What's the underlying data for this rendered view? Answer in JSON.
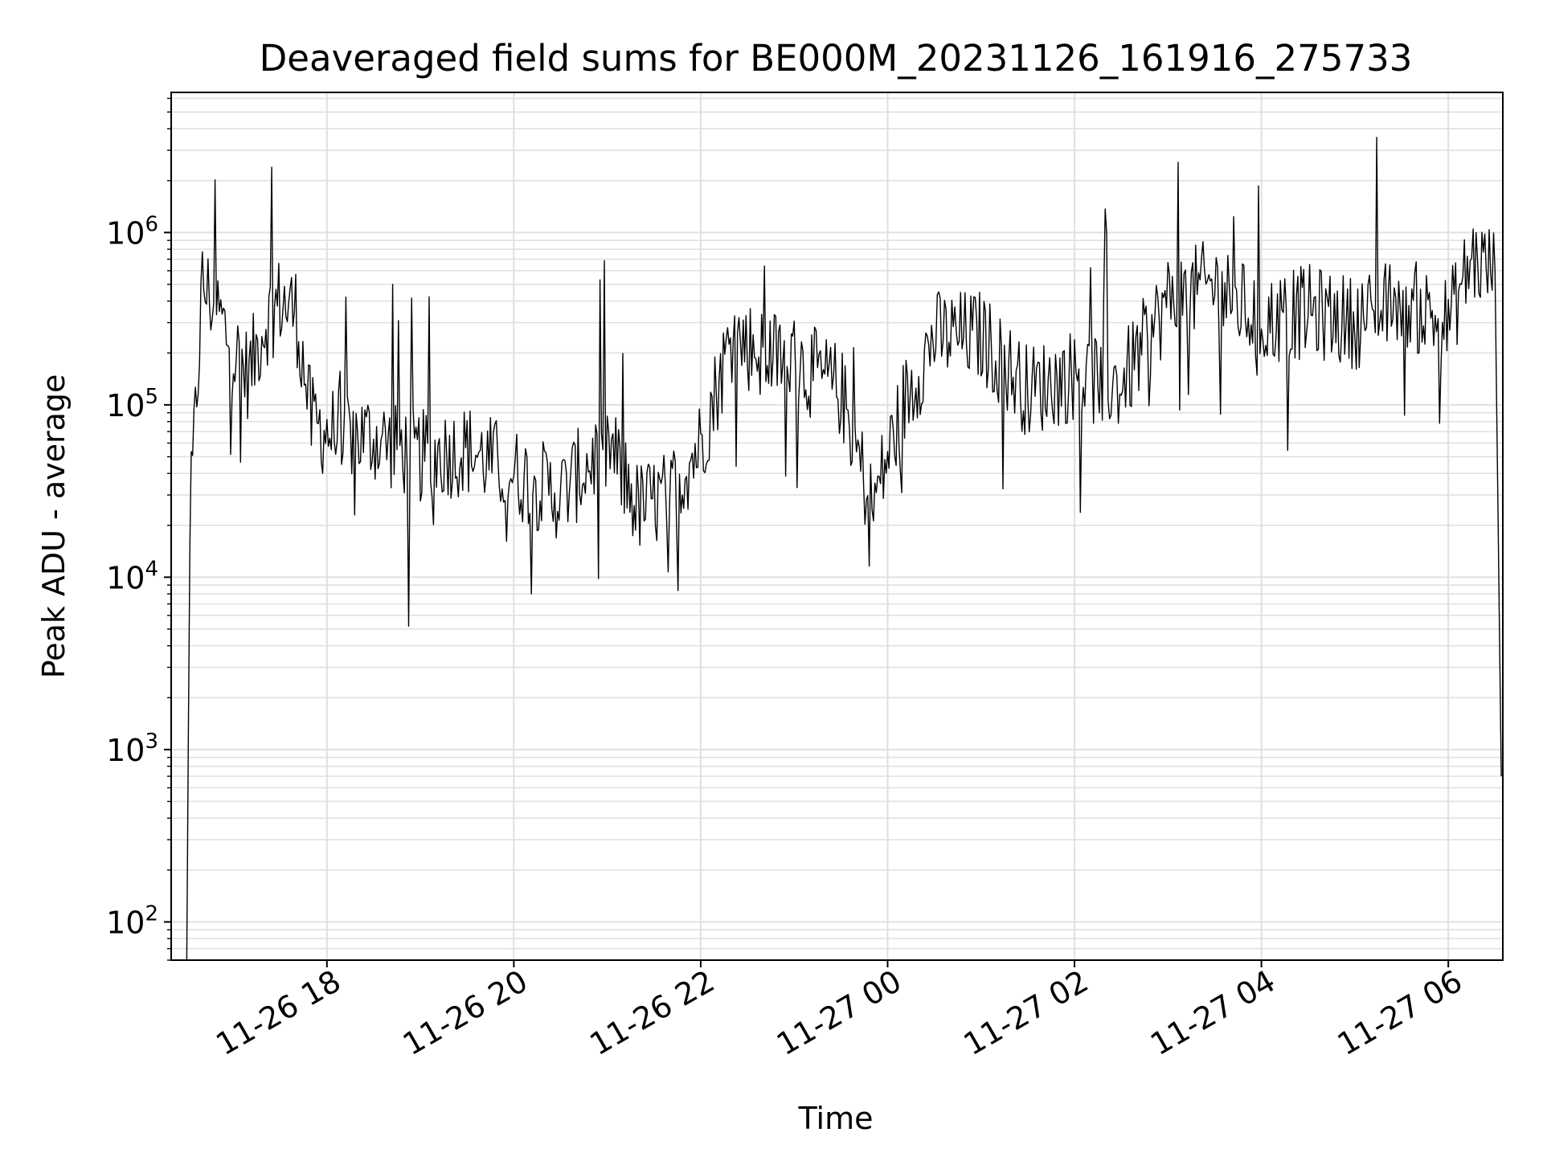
{
  "chart_data": {
    "type": "line",
    "title": "Deaveraged field sums for BE000M_20231126_161916_275733",
    "xlabel": "Time",
    "ylabel": "Peak ADU - average",
    "y_scale": "log",
    "ylim": [
      60,
      6500000
    ],
    "xlim": [
      "2023-11-26 16:20",
      "2023-11-27 06:35"
    ],
    "grid": true,
    "x_ticks": [
      {
        "value": "2023-11-26 18:00",
        "label": "11-26 18"
      },
      {
        "value": "2023-11-26 20:00",
        "label": "11-26 20"
      },
      {
        "value": "2023-11-26 22:00",
        "label": "11-26 22"
      },
      {
        "value": "2023-11-27 00:00",
        "label": "11-27 00"
      },
      {
        "value": "2023-11-27 02:00",
        "label": "11-27 02"
      },
      {
        "value": "2023-11-27 04:00",
        "label": "11-27 04"
      },
      {
        "value": "2023-11-27 06:00",
        "label": "11-27 06"
      }
    ],
    "y_ticks": [
      {
        "value": 100,
        "base": "10",
        "exp": "2"
      },
      {
        "value": 1000,
        "base": "10",
        "exp": "3"
      },
      {
        "value": 10000,
        "base": "10",
        "exp": "4"
      },
      {
        "value": 100000,
        "base": "10",
        "exp": "5"
      },
      {
        "value": 1000000,
        "base": "10",
        "exp": "6"
      }
    ],
    "colors": {
      "line": "#000000",
      "grid": "#e0e0e0"
    },
    "series": [
      {
        "points": [
          [
            "2023-11-26 16:30",
            60
          ],
          [
            "2023-11-26 16:32",
            20000
          ],
          [
            "2023-11-26 16:40",
            500000
          ],
          [
            "2023-11-26 16:50",
            350000
          ],
          [
            "2023-11-26 17:00",
            200000
          ],
          [
            "2023-11-26 17:10",
            150000
          ],
          [
            "2023-11-26 17:20",
            300000
          ],
          [
            "2023-11-26 17:30",
            400000
          ],
          [
            "2023-11-26 17:40",
            350000
          ],
          [
            "2023-11-26 17:50",
            80000
          ],
          [
            "2023-11-26 18:00",
            70000
          ],
          [
            "2023-11-26 18:30",
            65000
          ],
          [
            "2023-11-26 19:00",
            50000
          ],
          [
            "2023-11-26 19:30",
            55000
          ],
          [
            "2023-11-26 20:00",
            40000
          ],
          [
            "2023-11-26 20:30",
            30000
          ],
          [
            "2023-11-26 21:00",
            60000
          ],
          [
            "2023-11-26 21:20",
            25000
          ],
          [
            "2023-11-26 21:40",
            30000
          ],
          [
            "2023-11-26 22:00",
            60000
          ],
          [
            "2023-11-26 22:20",
            250000
          ],
          [
            "2023-11-26 22:40",
            200000
          ],
          [
            "2023-11-26 23:00",
            180000
          ],
          [
            "2023-11-26 23:30",
            120000
          ],
          [
            "2023-11-26 23:50",
            25000
          ],
          [
            "2023-11-27 00:10",
            100000
          ],
          [
            "2023-11-27 00:30",
            250000
          ],
          [
            "2023-11-27 01:00",
            250000
          ],
          [
            "2023-11-27 01:30",
            120000
          ],
          [
            "2023-11-27 02:00",
            150000
          ],
          [
            "2023-11-27 02:30",
            130000
          ],
          [
            "2023-11-27 03:00",
            400000
          ],
          [
            "2023-11-27 03:30",
            500000
          ],
          [
            "2023-11-27 04:00",
            300000
          ],
          [
            "2023-11-27 04:30",
            350000
          ],
          [
            "2023-11-27 05:00",
            300000
          ],
          [
            "2023-11-27 05:30",
            400000
          ],
          [
            "2023-11-27 06:00",
            300000
          ],
          [
            "2023-11-27 06:15",
            700000
          ],
          [
            "2023-11-27 06:30",
            600000
          ],
          [
            "2023-11-27 06:34",
            700
          ]
        ]
      }
    ]
  }
}
